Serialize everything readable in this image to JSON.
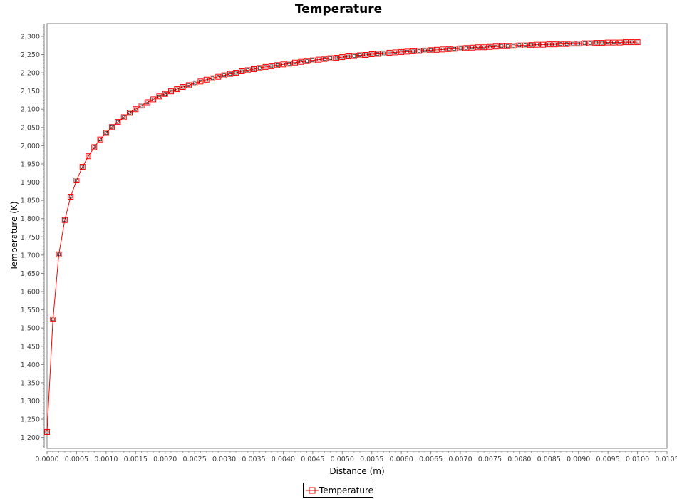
{
  "chart_data": {
    "type": "line",
    "title": "Temperature",
    "xlabel": "Distance (m)",
    "ylabel": "Temperature (K)",
    "xlim": [
      0.0,
      0.0105
    ],
    "ylim": [
      1170,
      2335
    ],
    "x_ticks": [
      "0.0000",
      "0.0005",
      "0.0010",
      "0.0015",
      "0.0020",
      "0.0025",
      "0.0030",
      "0.0035",
      "0.0040",
      "0.0045",
      "0.0050",
      "0.0055",
      "0.0060",
      "0.0065",
      "0.0070",
      "0.0075",
      "0.0080",
      "0.0085",
      "0.0090",
      "0.0095",
      "0.0100",
      "0.0105"
    ],
    "y_ticks": [
      "1,200",
      "1,250",
      "1,300",
      "1,350",
      "1,400",
      "1,450",
      "1,500",
      "1,550",
      "1,600",
      "1,650",
      "1,700",
      "1,750",
      "1,800",
      "1,850",
      "1,900",
      "1,950",
      "2,000",
      "2,050",
      "2,100",
      "2,150",
      "2,200",
      "2,250",
      "2,300"
    ],
    "grid": false,
    "legend": "bottom-center",
    "series": [
      {
        "name": "Temperature",
        "color": "#ff0000",
        "marker": "square",
        "x": [
          0.0,
          0.0001,
          0.0002,
          0.0003,
          0.0004,
          0.0005,
          0.0006,
          0.0007,
          0.0008,
          0.0009,
          0.001,
          0.0011,
          0.0012,
          0.0013,
          0.0014,
          0.0015,
          0.0016,
          0.0017,
          0.0018,
          0.0019,
          0.002,
          0.0021,
          0.0022,
          0.0023,
          0.0024,
          0.0025,
          0.0026,
          0.0027,
          0.0028,
          0.0029,
          0.003,
          0.0031,
          0.0032,
          0.0033,
          0.0034,
          0.0035,
          0.0036,
          0.0037,
          0.0038,
          0.0039,
          0.004,
          0.0041,
          0.0042,
          0.0043,
          0.0044,
          0.0045,
          0.0046,
          0.0047,
          0.0048,
          0.0049,
          0.005,
          0.0051,
          0.0052,
          0.0053,
          0.0054,
          0.0055,
          0.0056,
          0.0057,
          0.0058,
          0.0059,
          0.006,
          0.0061,
          0.0062,
          0.0063,
          0.0064,
          0.0065,
          0.0066,
          0.0067,
          0.0068,
          0.0069,
          0.007,
          0.0071,
          0.0072,
          0.0073,
          0.0074,
          0.0075,
          0.0076,
          0.0077,
          0.0078,
          0.0079,
          0.008,
          0.0081,
          0.0082,
          0.0083,
          0.0084,
          0.0085,
          0.0086,
          0.0087,
          0.0088,
          0.0089,
          0.009,
          0.0091,
          0.0092,
          0.0093,
          0.0094,
          0.0095,
          0.0096,
          0.0097,
          0.0098,
          0.0099,
          0.01
        ],
        "values": [
          1215,
          1524,
          1702,
          1796,
          1860,
          1905,
          1942,
          1971,
          1996,
          2017,
          2035,
          2051,
          2065,
          2078,
          2090,
          2100,
          2110,
          2119,
          2127,
          2135,
          2142,
          2149,
          2155,
          2161,
          2166,
          2171,
          2176,
          2181,
          2185,
          2189,
          2193,
          2197,
          2200,
          2204,
          2207,
          2210,
          2213,
          2216,
          2218,
          2221,
          2223,
          2225,
          2228,
          2230,
          2232,
          2234,
          2236,
          2238,
          2240,
          2241,
          2243,
          2245,
          2246,
          2248,
          2249,
          2251,
          2252,
          2253,
          2255,
          2256,
          2257,
          2258,
          2259,
          2260,
          2261,
          2262,
          2263,
          2264,
          2265,
          2266,
          2267,
          2268,
          2269,
          2270,
          2270,
          2271,
          2272,
          2273,
          2273,
          2274,
          2275,
          2275,
          2276,
          2277,
          2277,
          2278,
          2278,
          2279,
          2279,
          2280,
          2280,
          2281,
          2281,
          2282,
          2282,
          2283,
          2283,
          2283,
          2284,
          2284,
          2284
        ]
      }
    ]
  }
}
